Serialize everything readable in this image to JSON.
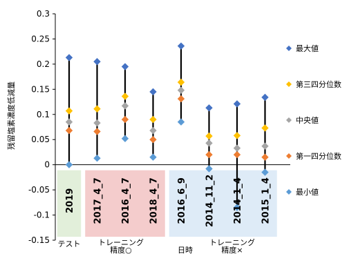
{
  "chart_data": {
    "type": "scatter",
    "ylabel": "残留塩素濃度低減量",
    "ylim": [
      -0.15,
      0.3
    ],
    "yticks": [
      -0.15,
      -0.1,
      -0.05,
      0,
      0.05,
      0.1,
      0.15,
      0.2,
      0.25,
      0.3
    ],
    "ytick_labels": [
      "-0.15",
      "-0.1",
      "-0.05",
      "0",
      "0.05",
      "0.1",
      "0.15",
      "0.2",
      "0.25",
      "0.3"
    ],
    "categories": [
      "2019",
      "2017_4_7",
      "2016_4_7",
      "2018_4_7",
      "2016_6_9",
      "2014_11_2",
      "2014_1_4",
      "2015_1_4"
    ],
    "groups": [
      {
        "label": "テスト",
        "start": 0,
        "end": 0,
        "color": "#e2efda"
      },
      {
        "label": "トレーニング\n精度○",
        "start": 1,
        "end": 3,
        "color": "#f4cccc"
      },
      {
        "label": "日時",
        "start": 4,
        "end": 4,
        "color": null
      },
      {
        "label": "トレーニング\n精度×",
        "start": 4,
        "end": 7,
        "color": "#deebf7"
      }
    ],
    "series": [
      {
        "name": "最大値",
        "color": "#4472c4",
        "values": [
          0.213,
          0.205,
          0.195,
          0.145,
          0.236,
          0.113,
          0.121,
          0.134
        ]
      },
      {
        "name": "第三四分位数",
        "color": "#ffc000",
        "values": [
          0.107,
          0.111,
          0.136,
          0.09,
          0.164,
          0.057,
          0.058,
          0.073
        ]
      },
      {
        "name": "中央値",
        "color": "#a5a5a5",
        "values": [
          0.085,
          0.083,
          0.117,
          0.068,
          0.148,
          0.043,
          0.033,
          0.037
        ]
      },
      {
        "name": "第一四分位数",
        "color": "#ed7d31",
        "values": [
          0.068,
          0.066,
          0.09,
          0.05,
          0.131,
          0.02,
          0.02,
          0.015
        ]
      },
      {
        "name": "最小値",
        "color": "#5b9bd5",
        "values": [
          0.0,
          0.013,
          0.052,
          0.015,
          0.085,
          -0.008,
          -0.085,
          -0.015
        ]
      }
    ],
    "legend_position": "right"
  }
}
